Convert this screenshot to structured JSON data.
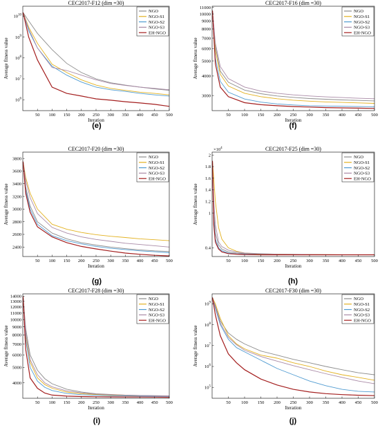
{
  "series_colors": {
    "NGO": "#8c8c8c",
    "NGO-S1": "#e3b11f",
    "NGO-S2": "#4f9bd1",
    "NGO-S3": "#a98aa6",
    "EH-NGO": "#a31d1d"
  },
  "chart_data": [
    {
      "type": "line",
      "title": "CEC2017-F12 (dim =30)",
      "panel_label": "(e)",
      "xlabel": "Iteration",
      "ylabel": "Average fitness value",
      "xlim": [
        0,
        500
      ],
      "yscale": "log",
      "ylim": [
        300000,
        30000000000
      ],
      "x_ticks": [
        50,
        100,
        150,
        200,
        250,
        300,
        350,
        400,
        450,
        500
      ],
      "y_ticks": [
        1000000,
        10000000,
        100000000,
        1000000000,
        10000000000
      ],
      "y_tick_labels": [
        "10^6",
        "10^7",
        "10^8",
        "10^9",
        "10^10"
      ],
      "legend_position": "top-right",
      "x": [
        1,
        20,
        50,
        100,
        150,
        200,
        250,
        300,
        350,
        400,
        450,
        500
      ],
      "series": [
        {
          "name": "NGO",
          "values": [
            15000000000,
            6000000000,
            1500000000,
            250000000,
            55000000,
            20000000,
            10000000,
            6500000,
            5000000,
            4000000,
            3300000,
            2800000
          ]
        },
        {
          "name": "NGO-S1",
          "values": [
            15000000000,
            3000000000,
            500000000,
            50000000,
            20000000,
            9000000,
            5000000,
            3500000,
            2800000,
            2300000,
            2000000,
            1700000
          ]
        },
        {
          "name": "NGO-S2",
          "values": [
            15000000000,
            2000000000,
            300000000,
            40000000,
            15000000,
            7000000,
            4000000,
            3000000,
            2500000,
            2000000,
            1700000,
            1500000
          ]
        },
        {
          "name": "NGO-S3",
          "values": [
            15000000000,
            2500000000,
            300000000,
            35000000,
            25000000,
            15000000,
            9000000,
            6000000,
            4800000,
            4000000,
            3500000,
            3000000
          ]
        },
        {
          "name": "EH-NGO",
          "values": [
            15000000000,
            1000000000,
            80000000,
            4000000,
            2000000,
            1500000,
            1100000,
            950000,
            800000,
            700000,
            600000,
            480000
          ]
        }
      ]
    },
    {
      "type": "line",
      "title": "CEC2017-F16 (dim =30)",
      "panel_label": "(f)",
      "xlabel": "Iteration",
      "ylabel": "Average fitness value",
      "xlim": [
        0,
        500
      ],
      "yscale": "log",
      "ylim": [
        2400,
        11200
      ],
      "x_ticks": [
        50,
        100,
        150,
        200,
        250,
        300,
        350,
        400,
        450,
        500
      ],
      "y_ticks": [
        3000,
        4000,
        5000,
        6000,
        7000,
        8000,
        9000,
        10000,
        11000
      ],
      "y_tick_labels": [
        "3000",
        "4000",
        "5000",
        "6000",
        "7000",
        "8000",
        "9000",
        "10000",
        "11000"
      ],
      "legend_position": "top-right",
      "x": [
        1,
        10,
        25,
        50,
        100,
        150,
        200,
        250,
        300,
        350,
        400,
        450,
        500
      ],
      "series": [
        {
          "name": "NGO",
          "values": [
            10500,
            6200,
            4300,
            3650,
            3250,
            3080,
            2980,
            2920,
            2870,
            2840,
            2810,
            2790,
            2770
          ]
        },
        {
          "name": "NGO-S1",
          "values": [
            10500,
            5800,
            4100,
            3450,
            3100,
            2950,
            2860,
            2800,
            2760,
            2730,
            2710,
            2690,
            2670
          ]
        },
        {
          "name": "NGO-S2",
          "values": [
            10500,
            5200,
            3700,
            3150,
            2850,
            2720,
            2650,
            2610,
            2580,
            2570,
            2560,
            2550,
            2540
          ]
        },
        {
          "name": "NGO-S3",
          "values": [
            10500,
            6500,
            4600,
            3850,
            3400,
            3200,
            3100,
            3030,
            2980,
            2940,
            2910,
            2880,
            2860
          ]
        },
        {
          "name": "EH-NGO",
          "values": [
            10500,
            4800,
            3400,
            2950,
            2700,
            2620,
            2580,
            2550,
            2530,
            2510,
            2500,
            2490,
            2480
          ]
        }
      ]
    },
    {
      "type": "line",
      "title": "CEC2017-F20 (dim =30)",
      "panel_label": "(g)",
      "xlabel": "Iteration",
      "ylabel": "Average fitness value",
      "xlim": [
        0,
        500
      ],
      "ylim": [
        2250,
        3900
      ],
      "x_ticks": [
        50,
        100,
        150,
        200,
        250,
        300,
        350,
        400,
        450,
        500
      ],
      "y_ticks": [
        2400,
        2600,
        2800,
        3000,
        3200,
        3400,
        3600,
        3800
      ],
      "y_tick_labels": [
        "2400",
        "2600",
        "2800",
        "3000",
        "3200",
        "3400",
        "3600",
        "3800"
      ],
      "legend_position": "top-right",
      "x": [
        1,
        10,
        25,
        50,
        100,
        150,
        200,
        250,
        300,
        350,
        400,
        450,
        500
      ],
      "series": [
        {
          "name": "NGO",
          "values": [
            3750,
            3350,
            3050,
            2800,
            2620,
            2530,
            2470,
            2430,
            2400,
            2375,
            2355,
            2340,
            2330
          ]
        },
        {
          "name": "NGO-S1",
          "values": [
            3750,
            3500,
            3250,
            3000,
            2760,
            2680,
            2630,
            2595,
            2570,
            2550,
            2530,
            2515,
            2500
          ]
        },
        {
          "name": "NGO-S2",
          "values": [
            3750,
            3300,
            3000,
            2760,
            2580,
            2500,
            2450,
            2410,
            2380,
            2360,
            2340,
            2325,
            2310
          ]
        },
        {
          "name": "NGO-S3",
          "values": [
            3750,
            3450,
            3180,
            2930,
            2710,
            2620,
            2560,
            2520,
            2490,
            2460,
            2440,
            2420,
            2400
          ]
        },
        {
          "name": "EH-NGO",
          "values": [
            3750,
            3250,
            2950,
            2720,
            2560,
            2470,
            2410,
            2370,
            2335,
            2305,
            2285,
            2270,
            2260
          ]
        }
      ]
    },
    {
      "type": "line",
      "title": "CEC2017-F25 (dim =30)",
      "panel_label": "(h)",
      "xlabel": "Iteration",
      "ylabel": "Average fitness value",
      "xlim": [
        0,
        500
      ],
      "ylim": [
        0.25,
        2.05
      ],
      "y_multiplier": "×10^4",
      "x_ticks": [
        50,
        100,
        150,
        200,
        250,
        300,
        350,
        400,
        450,
        500
      ],
      "y_ticks": [
        0.4,
        1,
        1.2,
        1.4,
        1.6,
        1.8,
        2
      ],
      "y_tick_labels": [
        "0.4",
        "1",
        "1.2",
        "1.4",
        "1.6",
        "1.8",
        "2"
      ],
      "legend_position": "top-right",
      "x": [
        1,
        5,
        10,
        20,
        30,
        50,
        75,
        100,
        150,
        200,
        300,
        400,
        500
      ],
      "series": [
        {
          "name": "NGO",
          "values": [
            1.9,
            1.0,
            0.65,
            0.45,
            0.38,
            0.33,
            0.31,
            0.3,
            0.29,
            0.285,
            0.28,
            0.28,
            0.28
          ]
        },
        {
          "name": "NGO-S1",
          "values": [
            1.9,
            1.6,
            1.2,
            0.75,
            0.55,
            0.4,
            0.34,
            0.31,
            0.295,
            0.29,
            0.285,
            0.28,
            0.28
          ]
        },
        {
          "name": "NGO-S2",
          "values": [
            1.9,
            0.9,
            0.55,
            0.4,
            0.35,
            0.31,
            0.295,
            0.29,
            0.285,
            0.28,
            0.28,
            0.28,
            0.28
          ]
        },
        {
          "name": "NGO-S3",
          "values": [
            1.9,
            1.2,
            0.8,
            0.5,
            0.42,
            0.36,
            0.33,
            0.31,
            0.3,
            0.29,
            0.285,
            0.28,
            0.28
          ]
        },
        {
          "name": "EH-NGO",
          "values": [
            1.9,
            0.8,
            0.5,
            0.38,
            0.33,
            0.3,
            0.29,
            0.285,
            0.28,
            0.28,
            0.28,
            0.28,
            0.28
          ]
        }
      ]
    },
    {
      "type": "line",
      "title": "CEC2017-F28 (dim =30)",
      "panel_label": "(i)",
      "xlabel": "Iteration",
      "ylabel": "Average fitness value",
      "xlim": [
        0,
        500
      ],
      "yscale": "log",
      "ylim": [
        3200,
        14500
      ],
      "x_ticks": [
        50,
        100,
        150,
        200,
        250,
        300,
        350,
        400,
        450,
        500
      ],
      "y_ticks": [
        4000,
        5000,
        6000,
        7000,
        8000,
        9000,
        10000,
        11000,
        12000,
        13000,
        14000
      ],
      "y_tick_labels": [
        "4000",
        "5000",
        "6000",
        "7000",
        "8000",
        "9000",
        "10000",
        "11000",
        "12000",
        "13000",
        "14000"
      ],
      "legend_position": "top-right",
      "x": [
        1,
        10,
        25,
        50,
        75,
        100,
        150,
        200,
        250,
        300,
        350,
        400,
        450,
        500
      ],
      "series": [
        {
          "name": "NGO",
          "values": [
            14000,
            8800,
            6000,
            4800,
            4250,
            3950,
            3650,
            3500,
            3420,
            3380,
            3350,
            3330,
            3320,
            3310
          ]
        },
        {
          "name": "NGO-S1",
          "values": [
            14000,
            8000,
            5400,
            4300,
            3900,
            3700,
            3500,
            3420,
            3380,
            3350,
            3330,
            3320,
            3310,
            3300
          ]
        },
        {
          "name": "NGO-S2",
          "values": [
            14000,
            7500,
            5000,
            4100,
            3750,
            3580,
            3430,
            3370,
            3340,
            3320,
            3310,
            3300,
            3295,
            3290
          ]
        },
        {
          "name": "NGO-S3",
          "values": [
            14000,
            8300,
            5600,
            4500,
            4000,
            3780,
            3560,
            3460,
            3400,
            3370,
            3350,
            3335,
            3325,
            3315
          ]
        },
        {
          "name": "EH-NGO",
          "values": [
            14000,
            6500,
            4300,
            3700,
            3450,
            3350,
            3300,
            3280,
            3270,
            3265,
            3260,
            3258,
            3255,
            3250
          ]
        }
      ]
    },
    {
      "type": "line",
      "title": "CEC2017-F30 (dim =30)",
      "panel_label": "(j)",
      "xlabel": "Iteration",
      "ylabel": "Average fitness value",
      "xlim": [
        0,
        500
      ],
      "yscale": "log",
      "ylim": [
        30000,
        3000000000
      ],
      "x_ticks": [
        50,
        100,
        150,
        200,
        250,
        300,
        350,
        400,
        450,
        500
      ],
      "y_ticks": [
        100000,
        1000000,
        10000000,
        100000000,
        1000000000
      ],
      "y_tick_labels": [
        "10^5",
        "10^6",
        "10^7",
        "10^8",
        "10^9"
      ],
      "legend_position": "top-right",
      "x": [
        1,
        10,
        25,
        50,
        75,
        100,
        150,
        200,
        250,
        300,
        350,
        400,
        450,
        500
      ],
      "series": [
        {
          "name": "NGO",
          "values": [
            2000000000,
            800000000,
            150000000,
            40000000,
            20000000,
            12000000,
            5500000,
            3500000,
            2200000,
            1500000,
            1000000,
            700000,
            500000,
            400000
          ]
        },
        {
          "name": "NGO-S1",
          "values": [
            2000000000,
            1000000000,
            200000000,
            30000000,
            12000000,
            7000000,
            3500000,
            2500000,
            1500000,
            1000000,
            600000,
            400000,
            300000,
            220000
          ]
        },
        {
          "name": "NGO-S2",
          "values": [
            2000000000,
            600000000,
            100000000,
            20000000,
            8000000,
            5000000,
            2000000,
            800000,
            400000,
            200000,
            120000,
            80000,
            65000,
            60000
          ]
        },
        {
          "name": "NGO-S3",
          "values": [
            2000000000,
            700000000,
            120000000,
            25000000,
            11000000,
            6000000,
            3000000,
            1800000,
            1100000,
            700000,
            450000,
            300000,
            200000,
            150000
          ]
        },
        {
          "name": "EH-NGO",
          "values": [
            2000000000,
            300000000,
            30000000,
            4000000,
            1500000,
            700000,
            250000,
            130000,
            80000,
            60000,
            50000,
            45000,
            42000,
            40000
          ]
        }
      ]
    }
  ]
}
